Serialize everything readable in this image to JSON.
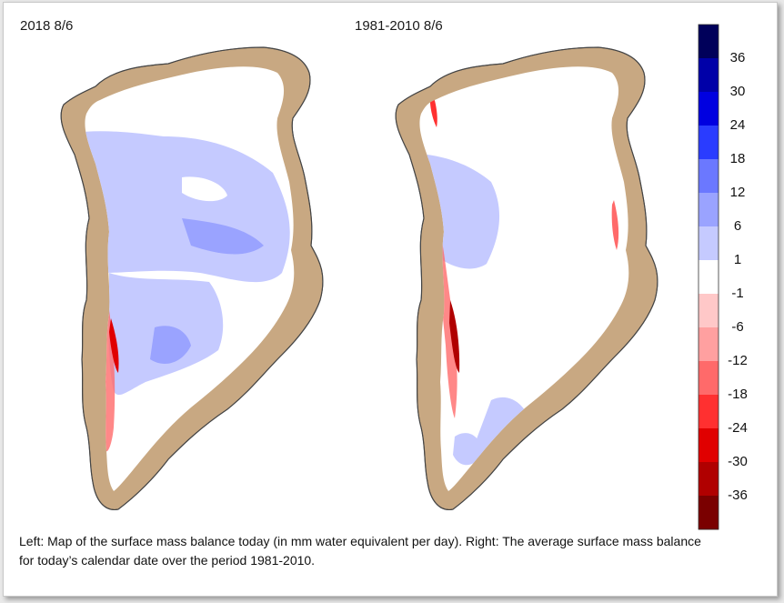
{
  "maps": [
    {
      "title": "2018 8/6"
    },
    {
      "title": "1981-2010 8/6"
    }
  ],
  "caption": "Left: Map of the surface mass balance today (in mm water equivalent per day). Right: The average surface mass balance for today’s calendar date over the period 1981-2010.",
  "colorbar": {
    "colors": [
      "#00005a",
      "#0000a8",
      "#0000e0",
      "#2a3cff",
      "#6b78ff",
      "#9aa3ff",
      "#c5caff",
      "#ffffff",
      "#ffc8c8",
      "#ffa0a0",
      "#ff6a6a",
      "#ff3030",
      "#e00000",
      "#b00000",
      "#7a0000"
    ],
    "ticks": [
      "36",
      "30",
      "24",
      "18",
      "12",
      "6",
      "1",
      "-1",
      "-6",
      "-12",
      "-18",
      "-24",
      "-30",
      "-36"
    ]
  },
  "palette": {
    "land": "#c8a882",
    "coast": "#555555",
    "ice": "#ffffff"
  }
}
